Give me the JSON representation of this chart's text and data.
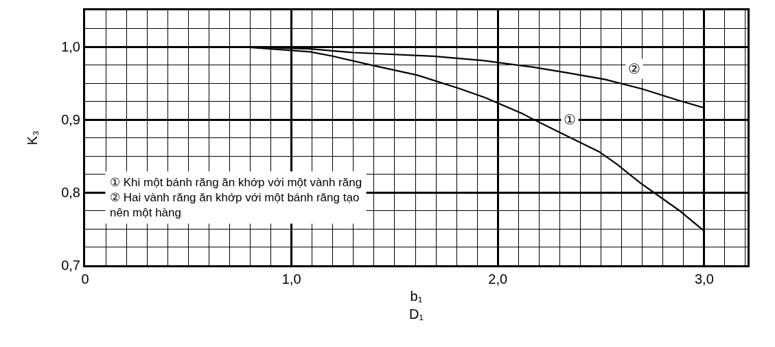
{
  "chart_data": {
    "type": "line",
    "xlabel": "b₁\nD₁",
    "ylabel": "K₃",
    "xlim": [
      0,
      3.21
    ],
    "ylim": [
      0.7,
      1.05
    ],
    "xticks": [
      {
        "value": 0,
        "label": "0"
      },
      {
        "value": 1,
        "label": "1,0"
      },
      {
        "value": 2,
        "label": "2,0"
      },
      {
        "value": 3,
        "label": "3,0"
      }
    ],
    "yticks": [
      {
        "value": 0.7,
        "label": "0,7"
      },
      {
        "value": 0.8,
        "label": "0,8"
      },
      {
        "value": 0.9,
        "label": "0,9"
      },
      {
        "value": 1.0,
        "label": "1,0"
      }
    ],
    "grid": true,
    "marker": "none",
    "line_style": "solid",
    "series": [
      {
        "color": "#000000",
        "x": [
          0.75,
          1.09,
          1.2,
          1.4,
          1.61,
          1.81,
          1.94,
          2.12,
          2.16,
          2.31,
          2.49,
          2.58,
          2.69,
          2.88,
          3.0
        ],
        "values": [
          1.0,
          0.993,
          0.987,
          0.974,
          0.961,
          0.943,
          0.93,
          0.908,
          0.902,
          0.881,
          0.856,
          0.838,
          0.813,
          0.775,
          0.747
        ]
      },
      {
        "color": "#000000",
        "x": [
          0.75,
          1.09,
          1.3,
          1.69,
          1.93,
          2.17,
          2.34,
          2.52,
          2.7,
          2.88,
          3.0
        ],
        "values": [
          1.0,
          0.997,
          0.992,
          0.987,
          0.981,
          0.972,
          0.964,
          0.955,
          0.942,
          0.926,
          0.916
        ]
      }
    ],
    "annotations": [
      {
        "text": "②",
        "x": 2.66,
        "y": 0.97
      },
      {
        "text": "①",
        "x": 2.35,
        "y": 0.9
      },
      "① Khi một bánh răng ăn khớp với một vành răng",
      "② Hai vành răng ăn khớp với một bánh răng tạo\nnên một hàng"
    ]
  }
}
